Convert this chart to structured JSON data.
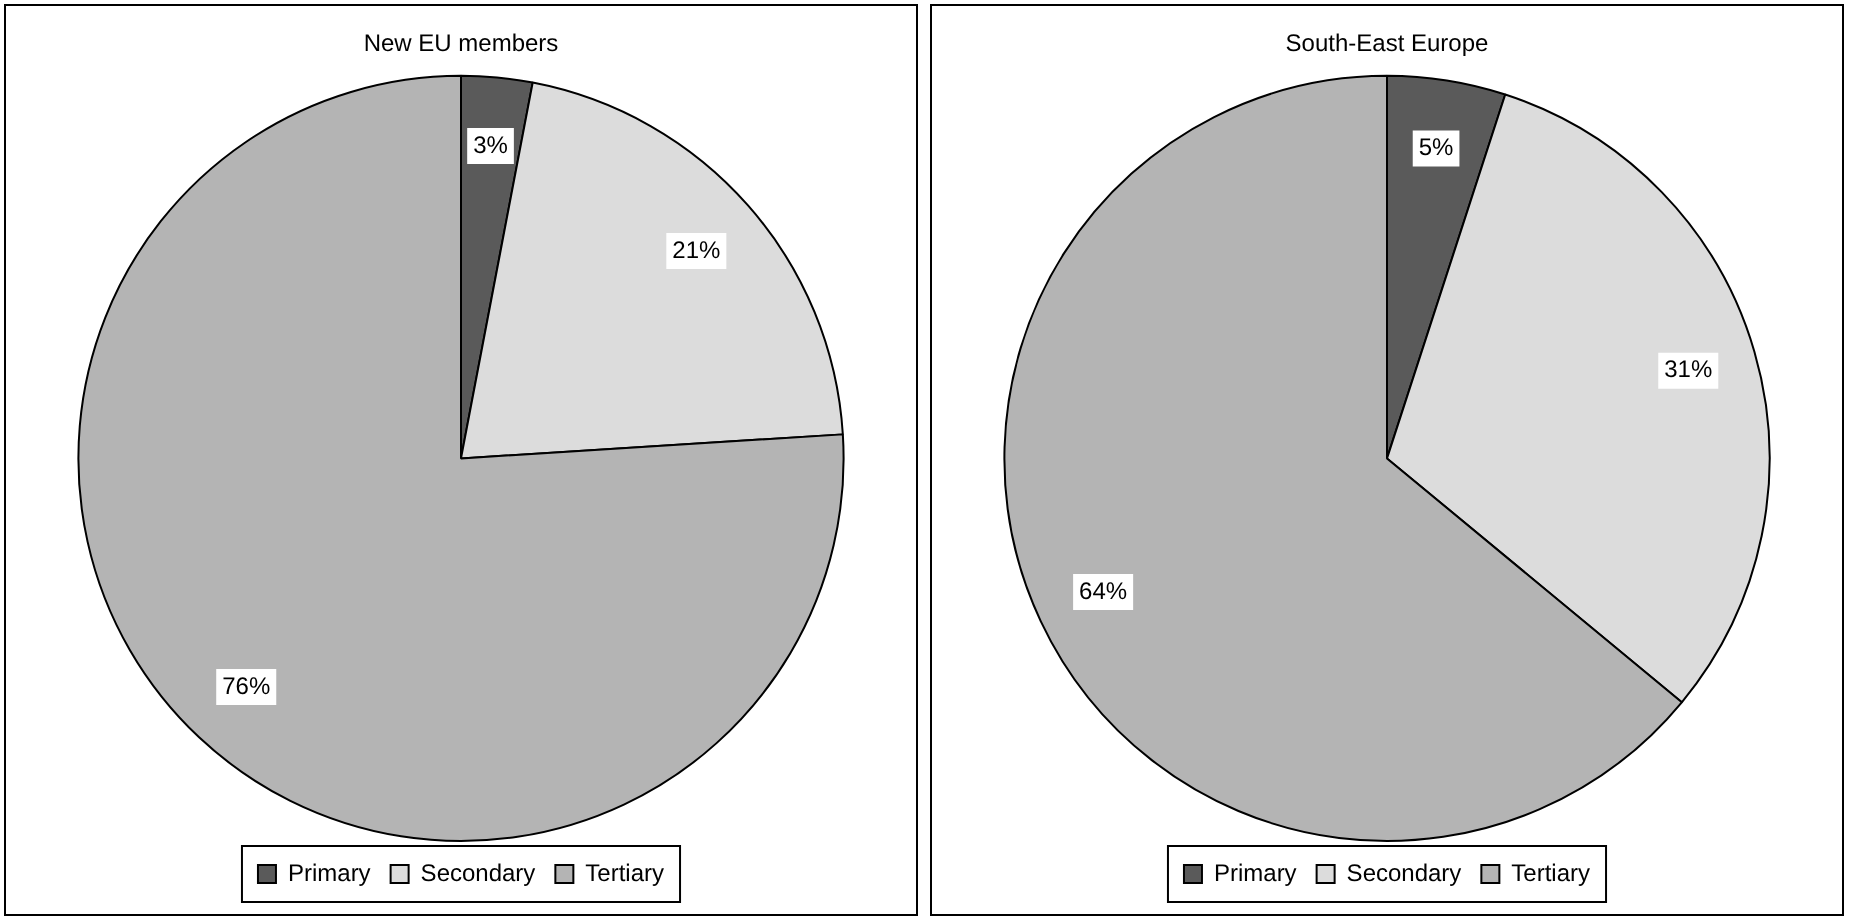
{
  "chart_data": [
    {
      "type": "pie",
      "title": "New EU members",
      "categories": [
        "Primary",
        "Secondary",
        "Tertiary"
      ],
      "values": [
        3,
        21,
        76
      ],
      "value_labels": [
        "3%",
        "21%",
        "76%"
      ],
      "colors": [
        "#5a5a5a",
        "#dcdcdc",
        "#b4b4b4"
      ],
      "legend": "bottom"
    },
    {
      "type": "pie",
      "title": "South-East Europe",
      "categories": [
        "Primary",
        "Secondary",
        "Tertiary"
      ],
      "values": [
        5,
        31,
        64
      ],
      "value_labels": [
        "5%",
        "31%",
        "64%"
      ],
      "colors": [
        "#5a5a5a",
        "#dcdcdc",
        "#b4b4b4"
      ],
      "legend": "bottom"
    }
  ]
}
